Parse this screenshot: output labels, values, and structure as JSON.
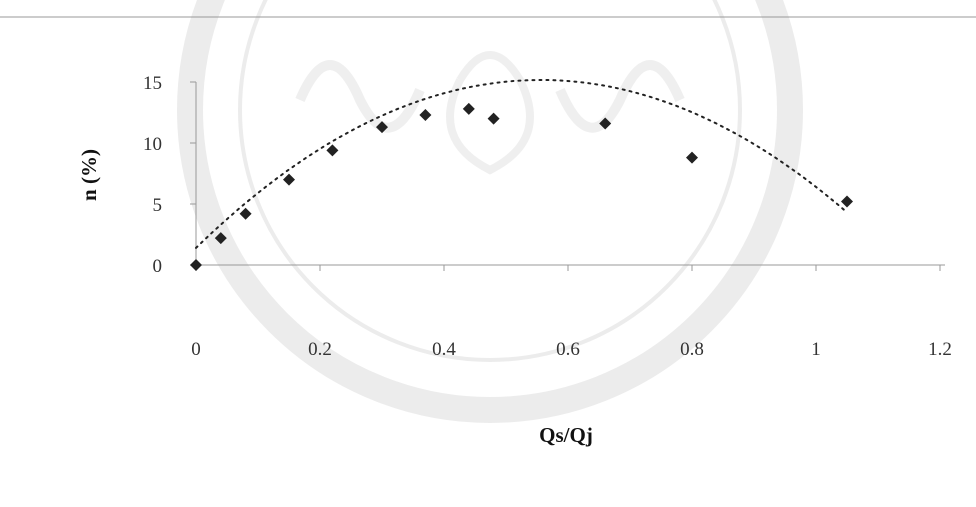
{
  "chart_data": {
    "type": "scatter",
    "xlabel": "Qs/Qj",
    "ylabel": "n (%)",
    "xlim": [
      0,
      1.2
    ],
    "ylim": [
      0,
      15
    ],
    "xticks": [
      "0",
      "0.2",
      "0.4",
      "0.6",
      "0.8",
      "1",
      "1.2"
    ],
    "yticks": [
      "0",
      "5",
      "10",
      "15"
    ],
    "grid": false,
    "legend": "none",
    "marker": "diamond",
    "colors": {
      "marker": "#222222",
      "trendline": "#222222",
      "axis": "#999999",
      "watermark": "#c8c8c8"
    },
    "series": [
      {
        "x": [
          0,
          0.04,
          0.08,
          0.15,
          0.22,
          0.3,
          0.37,
          0.44,
          0.48,
          0.66,
          0.8,
          1.05
        ],
        "y": [
          0,
          2.2,
          4.2,
          7.0,
          9.4,
          11.3,
          12.3,
          12.8,
          12.0,
          11.6,
          8.8,
          5.2
        ]
      }
    ],
    "trendline": {
      "type": "polynomial",
      "x_from": 0,
      "x_to": 1.05,
      "coefficients": [
        1.4,
        49.5,
        -44.5
      ]
    }
  },
  "watermark": {
    "kind": "university-seal"
  }
}
